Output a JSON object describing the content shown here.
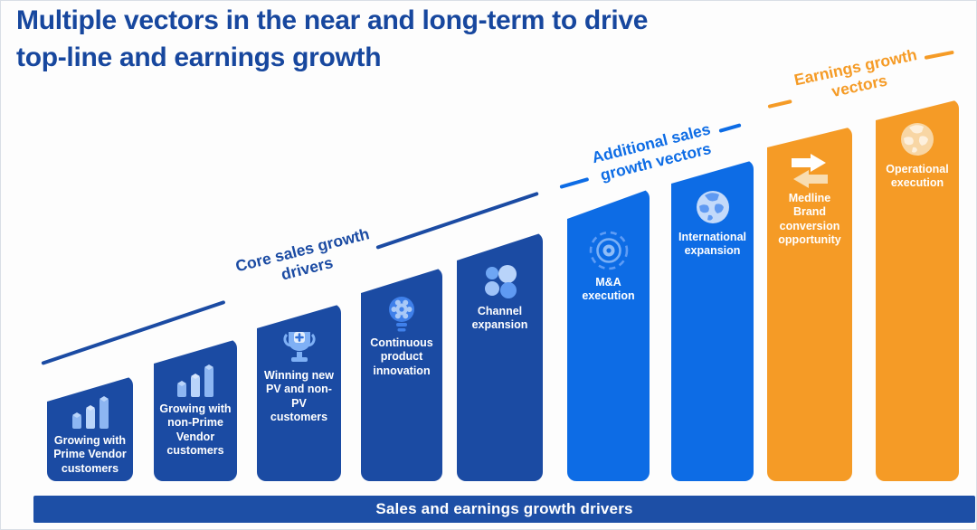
{
  "slide": {
    "title_lines": [
      "Multiple vectors in the near and long-term to drive",
      "top-line and earnings growth"
    ],
    "title_color": "#17479e",
    "footer_banner": "Sales and earnings growth drivers",
    "banner_color": "#1d4fa6",
    "background": "#fdfdfd"
  },
  "groups": [
    {
      "id": "core",
      "label": "Core sales growth drivers",
      "color": "#1b4ba3"
    },
    {
      "id": "additional",
      "label": "Additional sales growth vectors",
      "color": "#0d6ce5"
    },
    {
      "id": "earnings",
      "label": "Earnings growth vectors",
      "color": "#f59b26"
    }
  ],
  "bars": [
    {
      "label": "Growing with Prime Vendor customers",
      "icon": "bar-chart-icon",
      "group": "core"
    },
    {
      "label": "Growing with non-Prime Vendor customers",
      "icon": "bar-chart-icon",
      "group": "core"
    },
    {
      "label": "Winning new PV and non-PV customers",
      "icon": "trophy-icon",
      "group": "core"
    },
    {
      "label": "Continuous product innovation",
      "icon": "lightbulb-gear-icon",
      "group": "core"
    },
    {
      "label": "Channel expansion",
      "icon": "circles-cluster-icon",
      "group": "core"
    },
    {
      "label": "M&A execution",
      "icon": "target-icon",
      "group": "additional"
    },
    {
      "label": "International expansion",
      "icon": "globe-icon",
      "group": "additional"
    },
    {
      "label": "Medline Brand conversion opportunity",
      "icon": "swap-arrows-icon",
      "group": "earnings"
    },
    {
      "label": "Operational execution",
      "icon": "globe-icon",
      "group": "earnings"
    }
  ]
}
